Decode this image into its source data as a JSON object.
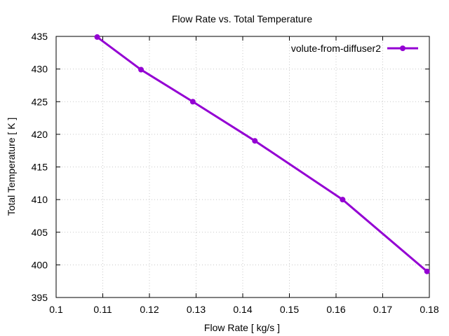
{
  "chart_data": {
    "type": "line",
    "title": "Flow Rate vs. Total Temperature",
    "xlabel": "Flow Rate [ kg/s ]",
    "ylabel": "Total Temperature [ K ]",
    "xlim": [
      0.1,
      0.18
    ],
    "ylim": [
      395,
      435
    ],
    "xticks": [
      "0.1",
      "0.11",
      "0.12",
      "0.13",
      "0.14",
      "0.15",
      "0.16",
      "0.17",
      "0.18"
    ],
    "yticks": [
      "395",
      "400",
      "405",
      "410",
      "415",
      "420",
      "425",
      "430",
      "435"
    ],
    "grid": true,
    "legend_position": "top-right",
    "series": [
      {
        "name": "volute-from-diffuser2",
        "color": "#9400d3",
        "x": [
          0.1088,
          0.1182,
          0.1293,
          0.1426,
          0.1614,
          0.1795
        ],
        "y": [
          434.9,
          429.9,
          425.0,
          419.0,
          410.0,
          399.0
        ]
      }
    ]
  }
}
